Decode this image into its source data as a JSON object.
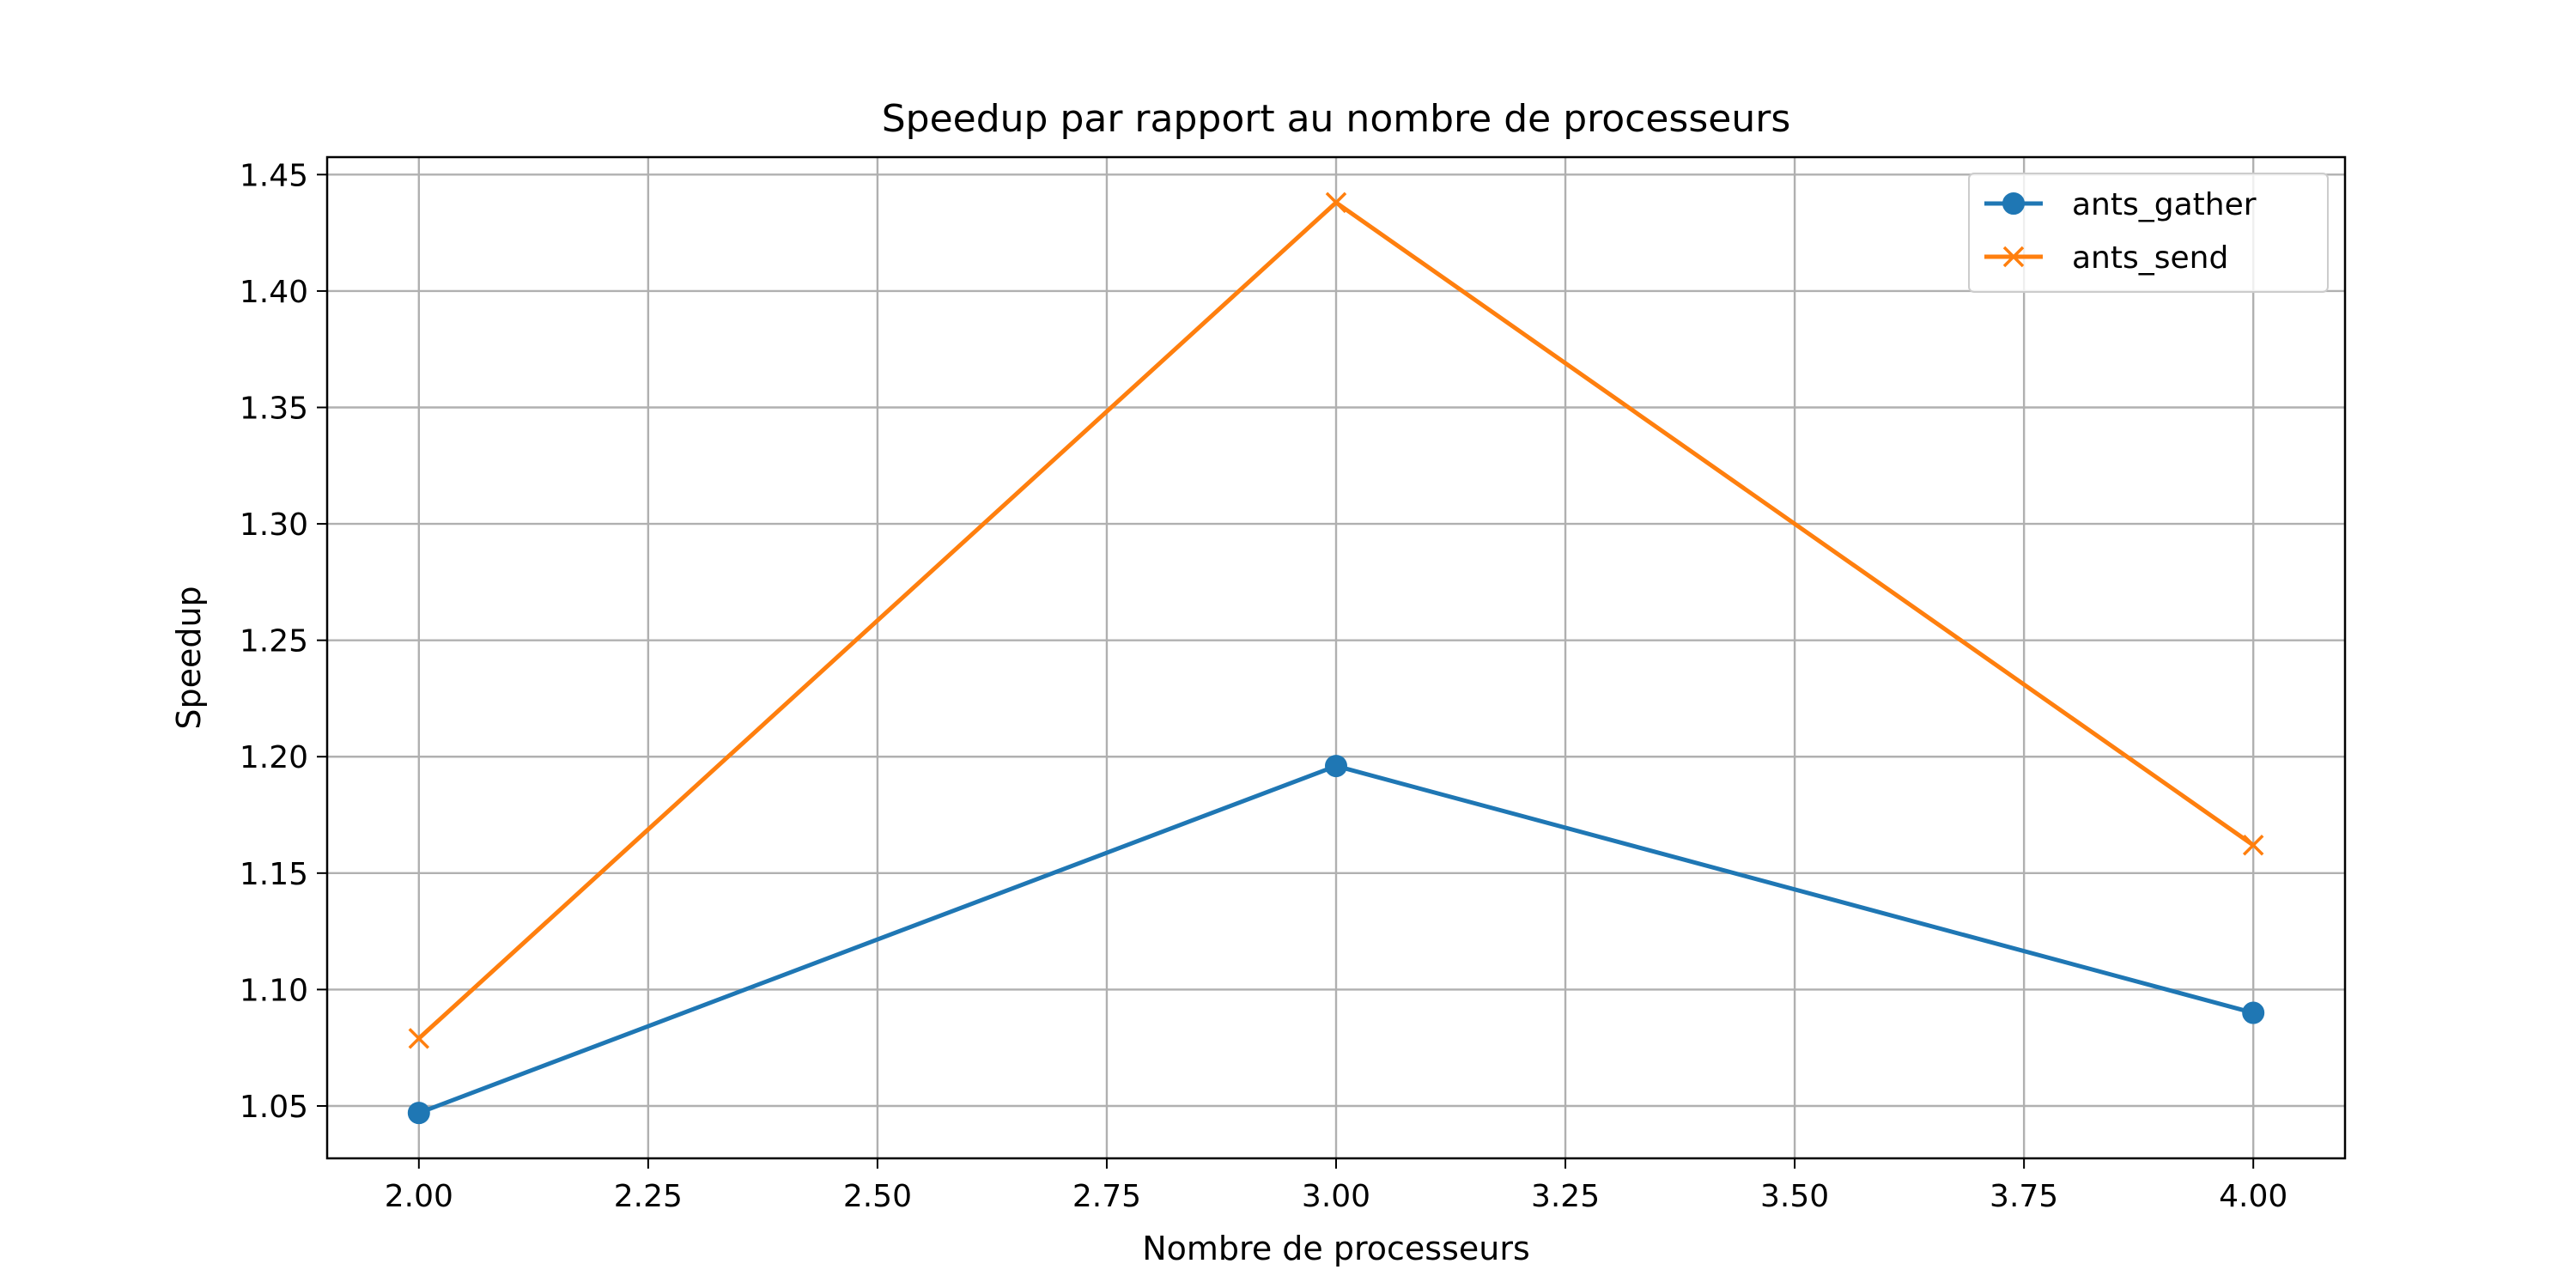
{
  "chart_data": {
    "type": "line",
    "title": "Speedup par rapport au nombre de processeurs",
    "xlabel": "Nombre de processeurs",
    "ylabel": "Speedup",
    "x": [
      2,
      3,
      4
    ],
    "series": [
      {
        "name": "ants_gather",
        "values": [
          1.047,
          1.196,
          1.09
        ],
        "color": "#1f77b4",
        "marker": "circle"
      },
      {
        "name": "ants_send",
        "values": [
          1.079,
          1.438,
          1.162
        ],
        "color": "#ff7f0e",
        "marker": "x"
      }
    ],
    "xlim": [
      1.9,
      4.1
    ],
    "ylim": [
      1.0275,
      1.4575
    ],
    "xticks": [
      "2.00",
      "2.25",
      "2.50",
      "2.75",
      "3.00",
      "3.25",
      "3.50",
      "3.75",
      "4.00"
    ],
    "yticks": [
      "1.05",
      "1.10",
      "1.15",
      "1.20",
      "1.25",
      "1.30",
      "1.35",
      "1.40",
      "1.45"
    ],
    "grid": true,
    "legend_position": "top-right"
  }
}
